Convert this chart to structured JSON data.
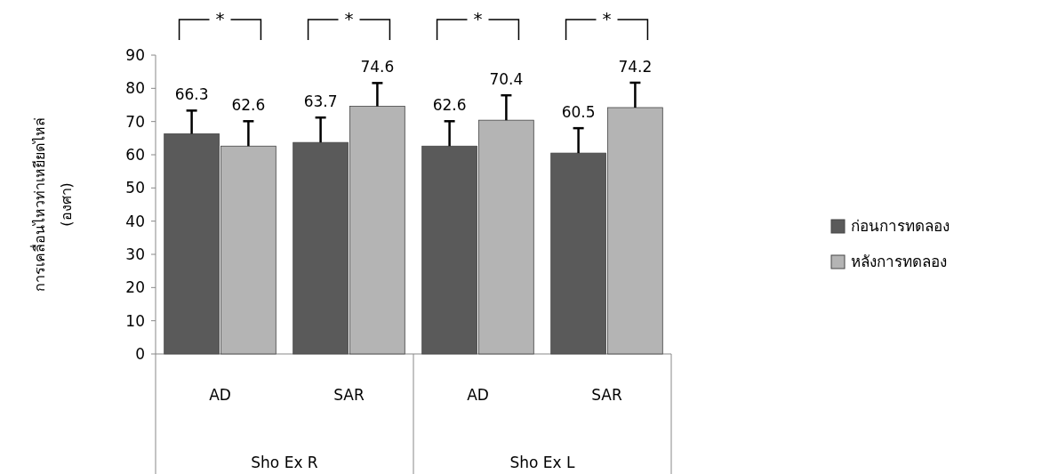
{
  "chart_data": {
    "type": "bar",
    "ylabel": "การเคลื่อนไหวท่าเหยียดไหล่\n(องศา)",
    "categories": [
      "AD",
      "SAR",
      "AD",
      "SAR"
    ],
    "series": [
      {
        "name": "ก่อนการทดลอง",
        "color": "#5a5a5a",
        "values": [
          66.3,
          63.7,
          62.6,
          60.5
        ],
        "errors": [
          [
            66.3,
            73.3
          ],
          [
            63.7,
            71.2
          ],
          [
            62.6,
            70.1
          ],
          [
            60.5,
            68
          ]
        ]
      },
      {
        "name": "หลังการทดลอง",
        "color": "#b4b4b4",
        "values": [
          62.6,
          74.6,
          70.4,
          74.2
        ],
        "errors": [
          [
            62.6,
            70.1
          ],
          [
            74.6,
            81.6
          ],
          [
            70.4,
            77.9
          ],
          [
            74.2,
            81.7
          ]
        ]
      }
    ],
    "ylim": [
      0,
      90
    ],
    "yticks": [
      0,
      10,
      20,
      30,
      40,
      50,
      60,
      70,
      80,
      90
    ],
    "data_labels": true,
    "legend": "right",
    "grid": false,
    "annotations": [
      "*",
      "*",
      "*",
      "*",
      "Sho Ex R",
      "Sho Ex L"
    ]
  }
}
